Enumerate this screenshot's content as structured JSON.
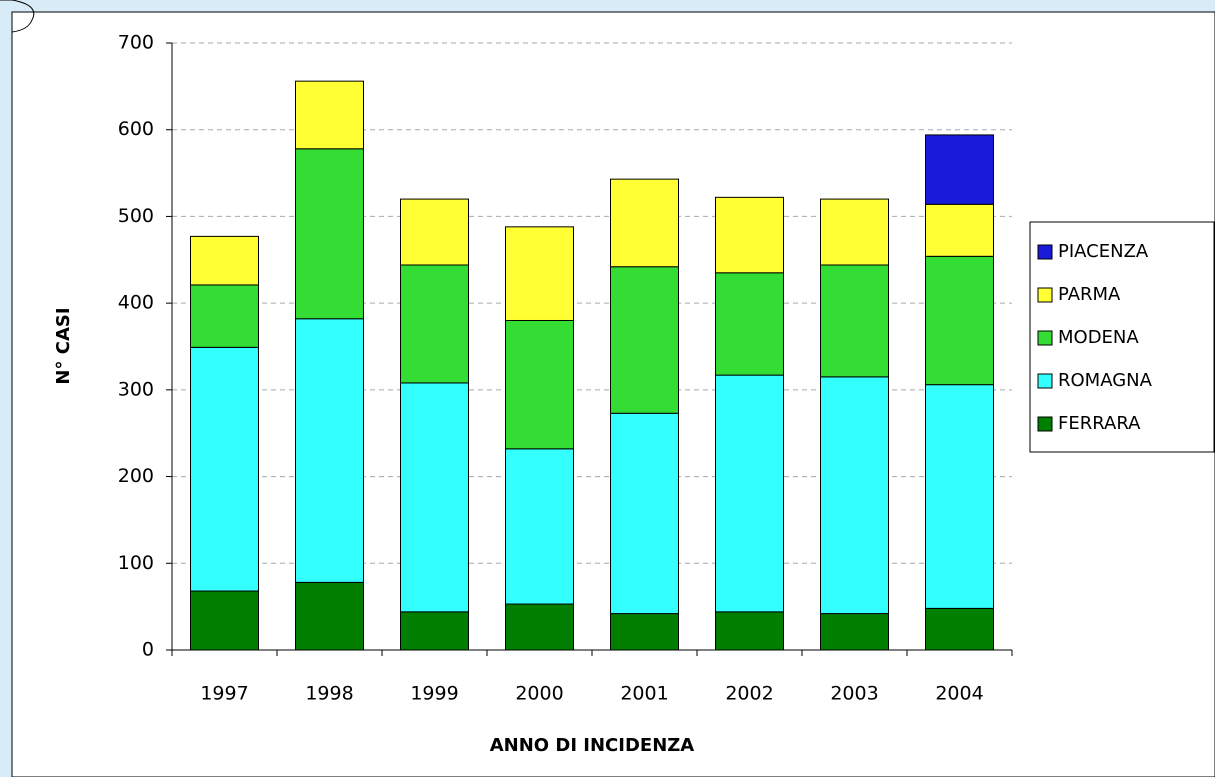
{
  "chart_data": {
    "type": "bar",
    "stacked": true,
    "x_label": "ANNO DI INCIDENZA",
    "y_label": "N° CASI",
    "categories": [
      "1997",
      "1998",
      "1999",
      "2000",
      "2001",
      "2002",
      "2003",
      "2004"
    ],
    "series": [
      {
        "name": "FERRARA",
        "color": "#007f00",
        "values": [
          68,
          78,
          44,
          53,
          42,
          44,
          42,
          48
        ]
      },
      {
        "name": "ROMAGNA",
        "color": "#33ffff",
        "values": [
          281,
          304,
          264,
          179,
          231,
          273,
          273,
          258
        ]
      },
      {
        "name": "MODENA",
        "color": "#33dd33",
        "values": [
          72,
          196,
          136,
          148,
          169,
          118,
          129,
          148
        ]
      },
      {
        "name": "PARMA",
        "color": "#ffff33",
        "values": [
          56,
          78,
          76,
          108,
          101,
          87,
          76,
          60
        ]
      },
      {
        "name": "PIACENZA",
        "color": "#1a1adb",
        "values": [
          null,
          null,
          null,
          null,
          null,
          null,
          null,
          80
        ]
      }
    ],
    "ylim": [
      0,
      700
    ],
    "yticks": [
      0,
      100,
      200,
      300,
      400,
      500,
      600,
      700
    ],
    "grid": true,
    "legend": "right"
  }
}
